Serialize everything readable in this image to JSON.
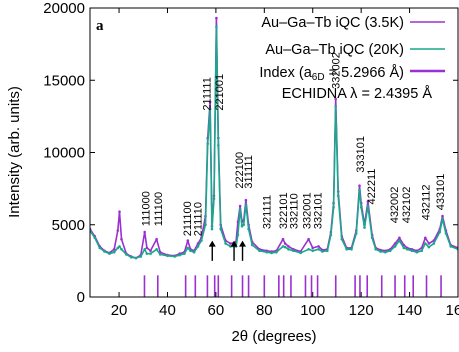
{
  "chart_data": {
    "type": "line",
    "panel_label": "a",
    "xlabel": "2θ (degrees)",
    "ylabel": "Intensity (arb. units)",
    "xlim": [
      8,
      160
    ],
    "ylim": [
      0,
      20000
    ],
    "x_ticks": [
      20,
      40,
      60,
      80,
      100,
      120,
      140,
      160
    ],
    "y_ticks": [
      0,
      5000,
      10000,
      15000,
      20000
    ],
    "legend_position": "top-right",
    "legend": [
      "Au–Ga–Tb iQC (3.5K)",
      "Au–Ga–Tb iQC (20K)",
      "Index (a6D = 5.2966 Å)"
    ],
    "legend_note": "ECHIDNA λ = 2.4395 Å",
    "colors": {
      "series_3_5K": "#9b30d0",
      "series_20K": "#1aa88a",
      "index_ticks": "#9b30d0"
    },
    "series": [
      {
        "name": "Au–Ga–Tb iQC (3.5K)",
        "x": [
          8,
          10,
          12,
          14,
          16,
          18,
          19.5,
          20.2,
          21,
          23,
          25,
          27,
          29,
          30.6,
          31.5,
          33,
          35.5,
          37,
          40,
          43,
          45,
          47,
          48.4,
          49.5,
          51,
          52.6,
          54,
          55.7,
          56.6,
          57.6,
          58.4,
          59.2,
          60.2,
          61,
          62,
          64,
          66,
          68.3,
          69.1,
          70,
          70.8,
          71.5,
          72.4,
          73.5,
          75,
          78,
          81,
          83,
          85,
          87.7,
          88.6,
          90,
          92,
          95,
          98.3,
          100,
          102.4,
          104,
          106,
          107.5,
          108.6,
          109.5,
          110.5,
          112,
          114,
          116,
          118,
          119.3,
          120,
          121.4,
          122.8,
          124.5,
          126,
          128,
          130,
          132,
          134,
          135.8,
          137.6,
          139,
          141,
          143,
          145,
          146.5,
          148,
          150,
          152.5,
          153.6,
          155,
          157,
          160
        ],
        "y": [
          4700,
          4200,
          3500,
          3200,
          3050,
          3300,
          4600,
          5900,
          4000,
          3000,
          2800,
          2700,
          2900,
          4500,
          3400,
          3200,
          4000,
          3100,
          2900,
          2850,
          3000,
          3100,
          3900,
          3300,
          3200,
          3700,
          4100,
          5600,
          11000,
          13500,
          4900,
          7000,
          19300,
          11000,
          5000,
          3900,
          3700,
          3800,
          5200,
          6300,
          5200,
          5300,
          6700,
          5000,
          3800,
          3300,
          3200,
          3150,
          3200,
          4000,
          3700,
          3500,
          3300,
          3150,
          4000,
          3400,
          3500,
          3250,
          3300,
          4500,
          6500,
          13700,
          7300,
          4200,
          3400,
          3400,
          4600,
          7700,
          6500,
          5000,
          6600,
          4300,
          3400,
          3250,
          3200,
          3300,
          3700,
          4100,
          3600,
          3400,
          3300,
          3200,
          3400,
          4100,
          3700,
          3900,
          4700,
          5600,
          4600,
          3600,
          3400
        ]
      },
      {
        "name": "Au–Ga–Tb iQC (20K)",
        "x": [
          8,
          10,
          12,
          14,
          16,
          18,
          19.5,
          20.2,
          21,
          23,
          25,
          27,
          29,
          30.6,
          31.5,
          33,
          35.5,
          37,
          40,
          43,
          45,
          47,
          48.4,
          49.5,
          51,
          52.6,
          54,
          55.7,
          56.6,
          57.6,
          58.4,
          59.2,
          60.2,
          61,
          62,
          64,
          66,
          68.3,
          69.1,
          70,
          70.8,
          71.5,
          72.4,
          73.5,
          75,
          78,
          81,
          83,
          85,
          87.7,
          88.6,
          90,
          92,
          95,
          98.3,
          100,
          102.4,
          104,
          106,
          107.5,
          108.6,
          109.5,
          110.5,
          112,
          114,
          116,
          118,
          119.3,
          120,
          121.4,
          122.8,
          124.5,
          126,
          128,
          130,
          132,
          134,
          135.8,
          137.6,
          139,
          141,
          143,
          145,
          146.5,
          148,
          150,
          152.5,
          153.6,
          155,
          157,
          160
        ],
        "y": [
          4600,
          4100,
          3400,
          3150,
          3000,
          3100,
          3400,
          3500,
          3300,
          2950,
          2750,
          2700,
          2800,
          3300,
          3000,
          3000,
          3300,
          2950,
          2850,
          2800,
          2900,
          3000,
          3400,
          3200,
          3100,
          3500,
          3900,
          5000,
          10600,
          13000,
          4700,
          6800,
          18700,
          10500,
          4700,
          3700,
          3500,
          3500,
          4300,
          6100,
          4900,
          5000,
          6400,
          4700,
          3600,
          3200,
          3100,
          3050,
          3100,
          3500,
          3450,
          3300,
          3200,
          3050,
          3300,
          3200,
          3300,
          3150,
          3200,
          4300,
          6200,
          13200,
          7000,
          4000,
          3300,
          3300,
          4400,
          7400,
          6200,
          4800,
          6300,
          4100,
          3300,
          3150,
          3100,
          3200,
          3500,
          3900,
          3400,
          3300,
          3200,
          3100,
          3200,
          3700,
          3450,
          3700,
          4500,
          5400,
          4400,
          3500,
          3300
        ]
      }
    ],
    "index_tick_positions": [
      30.5,
      36,
      47.5,
      51.5,
      56.5,
      59.5,
      61,
      66.5,
      71,
      73.5,
      80,
      86,
      88,
      91,
      97,
      99.5,
      102,
      109.5,
      117.5,
      119.5,
      122.5,
      128.5,
      134,
      138,
      141.5,
      147,
      153
    ],
    "peak_labels": [
      {
        "x": 31,
        "y": 4900,
        "text": "111000"
      },
      {
        "x": 36,
        "y": 4900,
        "text": "111100"
      },
      {
        "x": 48,
        "y": 4200,
        "text": "211100"
      },
      {
        "x": 52.5,
        "y": 4200,
        "text": "211110"
      },
      {
        "x": 56.2,
        "y": 12900,
        "text": "211111"
      },
      {
        "x": 61.2,
        "y": 12900,
        "text": "221001"
      },
      {
        "x": 69.5,
        "y": 7500,
        "text": "222100"
      },
      {
        "x": 73.2,
        "y": 7500,
        "text": "311111"
      },
      {
        "x": 81,
        "y": 4700,
        "text": "321111"
      },
      {
        "x": 87.7,
        "y": 4700,
        "text": "322101"
      },
      {
        "x": 92,
        "y": 4700,
        "text": "332110"
      },
      {
        "x": 97.5,
        "y": 4700,
        "text": "332001"
      },
      {
        "x": 102,
        "y": 4700,
        "text": "332101"
      },
      {
        "x": 109.5,
        "y": 14400,
        "text": "332002"
      },
      {
        "x": 119.5,
        "y": 8600,
        "text": "333101"
      },
      {
        "x": 124,
        "y": 6400,
        "text": "422211"
      },
      {
        "x": 133.5,
        "y": 5100,
        "text": "432002"
      },
      {
        "x": 138.5,
        "y": 5100,
        "text": "432102"
      },
      {
        "x": 146.5,
        "y": 5300,
        "text": "432112"
      },
      {
        "x": 152.5,
        "y": 6000,
        "text": "433101"
      }
    ],
    "arrows": [
      58.5,
      67.5,
      71
    ]
  }
}
